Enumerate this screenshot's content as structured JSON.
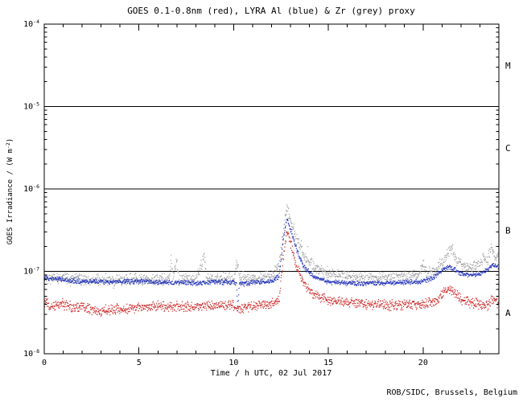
{
  "footer": "ROB/SIDC, Brussels, Belgium",
  "chart_data": {
    "type": "scatter",
    "title": "GOES 0.1-0.8nm (red), LYRA Al (blue) & Zr (grey) proxy",
    "xlabel": "Time / h UTC, 02 Jul 2017",
    "ylabel_parts": {
      "pre": "GOES Irradiance / (W m",
      "sup": "-2",
      "post": ")"
    },
    "xlim": [
      0,
      24
    ],
    "xticks_major": [
      0,
      5,
      10,
      15,
      20
    ],
    "x_minor_step": 1,
    "yscale": "log",
    "ylim_exponents": [
      -8,
      -4
    ],
    "ytick_exponents": [
      -8,
      -7,
      -6,
      -5,
      -4
    ],
    "hline_exponents": [
      -7,
      -6,
      -5
    ],
    "flare_class_labels": [
      {
        "label": "A",
        "decade_center": -7.5
      },
      {
        "label": "B",
        "decade_center": -6.5
      },
      {
        "label": "C",
        "decade_center": -5.5
      },
      {
        "label": "M",
        "decade_center": -4.5
      }
    ],
    "grid": false,
    "cadence_minutes": 1,
    "series": [
      {
        "id": "lyra-zr",
        "name": "LYRA Zr proxy",
        "color": "#a0a0a0",
        "noise_decades": 0.045,
        "outliers": true,
        "anchors": [
          [
            0,
            8.8e-08
          ],
          [
            0.5,
            8e-08
          ],
          [
            1,
            8.4e-08
          ],
          [
            2,
            8e-08
          ],
          [
            3,
            7.7e-08
          ],
          [
            4,
            7.8e-08
          ],
          [
            5,
            8e-08
          ],
          [
            6,
            7.8e-08
          ],
          [
            6.6,
            8.2e-08
          ],
          [
            6.7,
            1.5e-07
          ],
          [
            6.8,
            8.2e-08
          ],
          [
            7.0,
            1.35e-07
          ],
          [
            7.1,
            8.2e-08
          ],
          [
            8,
            8e-08
          ],
          [
            8.45,
            1.45e-07
          ],
          [
            8.6,
            8.2e-08
          ],
          [
            9,
            8e-08
          ],
          [
            10,
            8.2e-08
          ],
          [
            10.2,
            1.3e-07
          ],
          [
            10.35,
            8.4e-08
          ],
          [
            11,
            8.2e-08
          ],
          [
            11.5,
            8.4e-08
          ],
          [
            12,
            8.8e-08
          ],
          [
            12.4,
            1.15e-07
          ],
          [
            12.6,
            3e-07
          ],
          [
            12.8,
            5.8e-07
          ],
          [
            13.0,
            4.4e-07
          ],
          [
            13.3,
            2.6e-07
          ],
          [
            13.7,
            1.6e-07
          ],
          [
            14.2,
            1.15e-07
          ],
          [
            15,
            9.4e-08
          ],
          [
            16,
            8.6e-08
          ],
          [
            17,
            8.2e-08
          ],
          [
            18,
            8.4e-08
          ],
          [
            19,
            8.6e-08
          ],
          [
            19.8,
            9e-08
          ],
          [
            20.0,
            1.25e-07
          ],
          [
            20.2,
            9.2e-08
          ],
          [
            20.6,
            1e-07
          ],
          [
            21.1,
            1.4e-07
          ],
          [
            21.5,
            1.95e-07
          ],
          [
            21.8,
            1.35e-07
          ],
          [
            22.2,
            1.15e-07
          ],
          [
            22.6,
            1.1e-07
          ],
          [
            23.0,
            1.2e-07
          ],
          [
            23.2,
            1.45e-07
          ],
          [
            23.4,
            1.3e-07
          ],
          [
            23.6,
            1.95e-07
          ],
          [
            23.8,
            1.5e-07
          ],
          [
            24,
            1.6e-07
          ]
        ]
      },
      {
        "id": "lyra-al",
        "name": "LYRA Al proxy",
        "color": "#2233bb",
        "noise_decades": 0.02,
        "outliers": false,
        "anchors": [
          [
            0,
            8.2e-08
          ],
          [
            1,
            7.9e-08
          ],
          [
            2,
            7.6e-08
          ],
          [
            3,
            7.4e-08
          ],
          [
            4,
            7.5e-08
          ],
          [
            5,
            7.6e-08
          ],
          [
            6,
            7.4e-08
          ],
          [
            7,
            7.3e-08
          ],
          [
            8,
            7.2e-08
          ],
          [
            9,
            7.4e-08
          ],
          [
            10,
            7.4e-08
          ],
          [
            10.15,
            7.2e-08
          ],
          [
            10.22,
            3.4e-08
          ],
          [
            10.3,
            7e-08
          ],
          [
            11,
            7.3e-08
          ],
          [
            12,
            7.5e-08
          ],
          [
            12.4,
            8.8e-08
          ],
          [
            12.6,
            2.2e-07
          ],
          [
            12.8,
            4.3e-07
          ],
          [
            13.0,
            3.3e-07
          ],
          [
            13.3,
            1.9e-07
          ],
          [
            13.7,
            1.15e-07
          ],
          [
            14.2,
            8.6e-08
          ],
          [
            15,
            7.5e-08
          ],
          [
            16,
            7.2e-08
          ],
          [
            17,
            7.1e-08
          ],
          [
            18,
            7.2e-08
          ],
          [
            19,
            7.3e-08
          ],
          [
            20,
            7.6e-08
          ],
          [
            20.6,
            8.5e-08
          ],
          [
            21.1,
            1.05e-07
          ],
          [
            21.4,
            1.15e-07
          ],
          [
            21.8,
            1e-07
          ],
          [
            22.2,
            9.2e-08
          ],
          [
            22.6,
            8.9e-08
          ],
          [
            23,
            9.4e-08
          ],
          [
            23.4,
            1.05e-07
          ],
          [
            23.7,
            1.2e-07
          ],
          [
            24,
            1.1e-07
          ]
        ]
      },
      {
        "id": "goes-xray",
        "name": "GOES 0.1-0.8nm",
        "color": "#cc2222",
        "noise_decades": 0.04,
        "outliers": false,
        "anchors": [
          [
            0,
            4.2e-08
          ],
          [
            0.4,
            3.7e-08
          ],
          [
            1,
            4e-08
          ],
          [
            1.5,
            3.6e-08
          ],
          [
            2,
            3.8e-08
          ],
          [
            2.5,
            3.4e-08
          ],
          [
            3,
            3.3e-08
          ],
          [
            4,
            3.5e-08
          ],
          [
            5,
            3.7e-08
          ],
          [
            6,
            3.8e-08
          ],
          [
            7,
            3.8e-08
          ],
          [
            8,
            3.7e-08
          ],
          [
            9,
            3.8e-08
          ],
          [
            10,
            3.9e-08
          ],
          [
            10.3,
            3.5e-08
          ],
          [
            11,
            3.8e-08
          ],
          [
            12,
            4e-08
          ],
          [
            12.4,
            4.5e-08
          ],
          [
            12.6,
            1.4e-07
          ],
          [
            12.8,
            3e-07
          ],
          [
            13.0,
            2.3e-07
          ],
          [
            13.3,
            1.2e-07
          ],
          [
            13.7,
            7e-08
          ],
          [
            14.2,
            5.2e-08
          ],
          [
            15,
            4.5e-08
          ],
          [
            16,
            4.2e-08
          ],
          [
            17,
            4e-08
          ],
          [
            18,
            3.9e-08
          ],
          [
            19,
            3.9e-08
          ],
          [
            20,
            4.1e-08
          ],
          [
            20.7,
            4.4e-08
          ],
          [
            21.2,
            6e-08
          ],
          [
            21.5,
            5.8e-08
          ],
          [
            22,
            4.6e-08
          ],
          [
            22.5,
            4.2e-08
          ],
          [
            23,
            4e-08
          ],
          [
            23.4,
            3.9e-08
          ],
          [
            23.7,
            4.6e-08
          ],
          [
            24,
            4e-08
          ]
        ]
      }
    ]
  }
}
